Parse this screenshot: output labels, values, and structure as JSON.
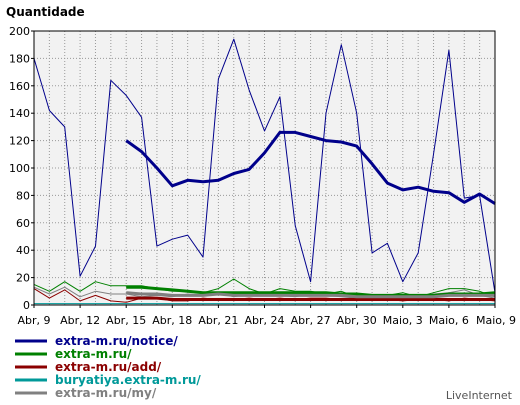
{
  "chart_data": {
    "type": "line",
    "ylabel": "Quantidade",
    "ylim": [
      0,
      200
    ],
    "yticks": [
      0,
      20,
      40,
      60,
      80,
      100,
      120,
      140,
      160,
      180,
      200
    ],
    "xtick_labels": [
      "Abr, 9",
      "Abr, 12",
      "Abr, 15",
      "Abr, 18",
      "Abr, 21",
      "Abr, 24",
      "Abr, 27",
      "Abr, 30",
      "Maio, 3",
      "Maio, 6",
      "Maio, 9"
    ],
    "grid": true,
    "legend_position": "bottom-left",
    "series": [
      {
        "name": "extra-m.ru/notice/",
        "color": "#00008b",
        "values": [
          180,
          142,
          130,
          21,
          43,
          164,
          153,
          137,
          43,
          48,
          51,
          35,
          165,
          194,
          157,
          127,
          152,
          58,
          17,
          140,
          190,
          140,
          38,
          45,
          17,
          38,
          110,
          186,
          78,
          80,
          9
        ]
      },
      {
        "name": "extra-m.ru/notice/ (average)",
        "legend": false,
        "color": "#00008b",
        "values": [
          null,
          null,
          null,
          null,
          null,
          null,
          120,
          112,
          100,
          87,
          91,
          90,
          91,
          96,
          99,
          111,
          126,
          126,
          123,
          120,
          119,
          116,
          103,
          89,
          84,
          86,
          83,
          82,
          75,
          81,
          74
        ]
      },
      {
        "name": "extra-m.ru/",
        "color": "#008000",
        "values": [
          15,
          10,
          17,
          10,
          17,
          14,
          14,
          14,
          12,
          10,
          10,
          9,
          12,
          19,
          12,
          8,
          12,
          10,
          10,
          8,
          10,
          6,
          6,
          7,
          9,
          6,
          9,
          12,
          12,
          10,
          6
        ]
      },
      {
        "name": "extra-m.ru/ (average)",
        "legend": false,
        "color": "#008000",
        "values": [
          null,
          null,
          null,
          null,
          null,
          null,
          13,
          13,
          12,
          11,
          10,
          9,
          9,
          9,
          9,
          9,
          9,
          9,
          9,
          9,
          8,
          8,
          7,
          7,
          7,
          7,
          7,
          8,
          8,
          8,
          9
        ]
      },
      {
        "name": "extra-m.ru/add/",
        "color": "#8b0000",
        "values": [
          12,
          5,
          11,
          3,
          7,
          3,
          2,
          5,
          5,
          3,
          3,
          5,
          4,
          4,
          5,
          4,
          5,
          4,
          5,
          5,
          4,
          4,
          5,
          4,
          3,
          4,
          4,
          3,
          5,
          4,
          3
        ]
      },
      {
        "name": "extra-m.ru/add/ (average)",
        "legend": false,
        "color": "#8b0000",
        "values": [
          null,
          null,
          null,
          null,
          null,
          null,
          5,
          5,
          5,
          4,
          4,
          4,
          4,
          4,
          4,
          4,
          4,
          4,
          4,
          4,
          4,
          4,
          4,
          4,
          4,
          4,
          4,
          4,
          4,
          4,
          4
        ]
      },
      {
        "name": "buryatiya.extra-m.ru/",
        "color": "#009999",
        "values": [
          1,
          1,
          1,
          1,
          1,
          1,
          1,
          1,
          1,
          1,
          1,
          1,
          1,
          1,
          1,
          1,
          1,
          1,
          1,
          1,
          1,
          1,
          1,
          1,
          1,
          1,
          1,
          1,
          1,
          1,
          1
        ]
      },
      {
        "name": "extra-m.ru/my/",
        "color": "#808080",
        "values": [
          13,
          8,
          13,
          6,
          10,
          8,
          8,
          6,
          7,
          6,
          8,
          7,
          9,
          6,
          8,
          9,
          7,
          6,
          8,
          7,
          6,
          5,
          6,
          7,
          5,
          6,
          8,
          9,
          11,
          7,
          5
        ]
      },
      {
        "name": "extra-m.ru/my/ (average)",
        "legend": false,
        "color": "#808080",
        "values": [
          null,
          null,
          null,
          null,
          null,
          null,
          9,
          8,
          8,
          7,
          7,
          7,
          8,
          7,
          7,
          7,
          7,
          7,
          7,
          7,
          7,
          6,
          6,
          6,
          6,
          6,
          6,
          7,
          7,
          7,
          7
        ]
      }
    ],
    "watermark": "LiveInternet"
  }
}
